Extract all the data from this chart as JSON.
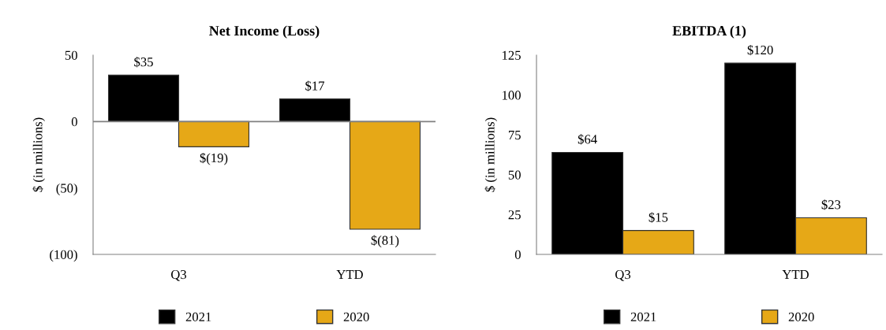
{
  "chart_data": [
    {
      "type": "bar",
      "title": "Net Income (Loss)",
      "ylabel": "$ (in millions)",
      "categories": [
        "Q3",
        "YTD"
      ],
      "series": [
        {
          "name": "2021",
          "color": "#000000",
          "values": [
            35,
            17
          ],
          "value_labels": [
            "$35",
            "$17"
          ]
        },
        {
          "name": "2020",
          "color": "#e6a817",
          "values": [
            -19,
            -81
          ],
          "value_labels": [
            "$(19)",
            "$(81)"
          ]
        }
      ],
      "ylim": [
        -100,
        50
      ],
      "yticks": [
        50,
        0,
        {
          "value": -50,
          "label": "(50)"
        },
        {
          "value": -100,
          "label": "(100)"
        }
      ],
      "ref_lines": [
        {
          "axis": "y",
          "value": 0,
          "color": "#808080"
        }
      ],
      "grid": false,
      "legend": "bottom"
    },
    {
      "type": "bar",
      "title": "EBITDA (1)",
      "ylabel": "$ (in millions)",
      "categories": [
        "Q3",
        "YTD"
      ],
      "series": [
        {
          "name": "2021",
          "color": "#000000",
          "values": [
            64,
            120
          ],
          "value_labels": [
            "$64",
            "$120"
          ]
        },
        {
          "name": "2020",
          "color": "#e6a817",
          "values": [
            15,
            23
          ],
          "value_labels": [
            "$15",
            "$23"
          ]
        }
      ],
      "ylim": [
        0,
        125
      ],
      "yticks": [
        0,
        25,
        50,
        75,
        100,
        125
      ],
      "grid": false,
      "legend": "bottom"
    }
  ]
}
